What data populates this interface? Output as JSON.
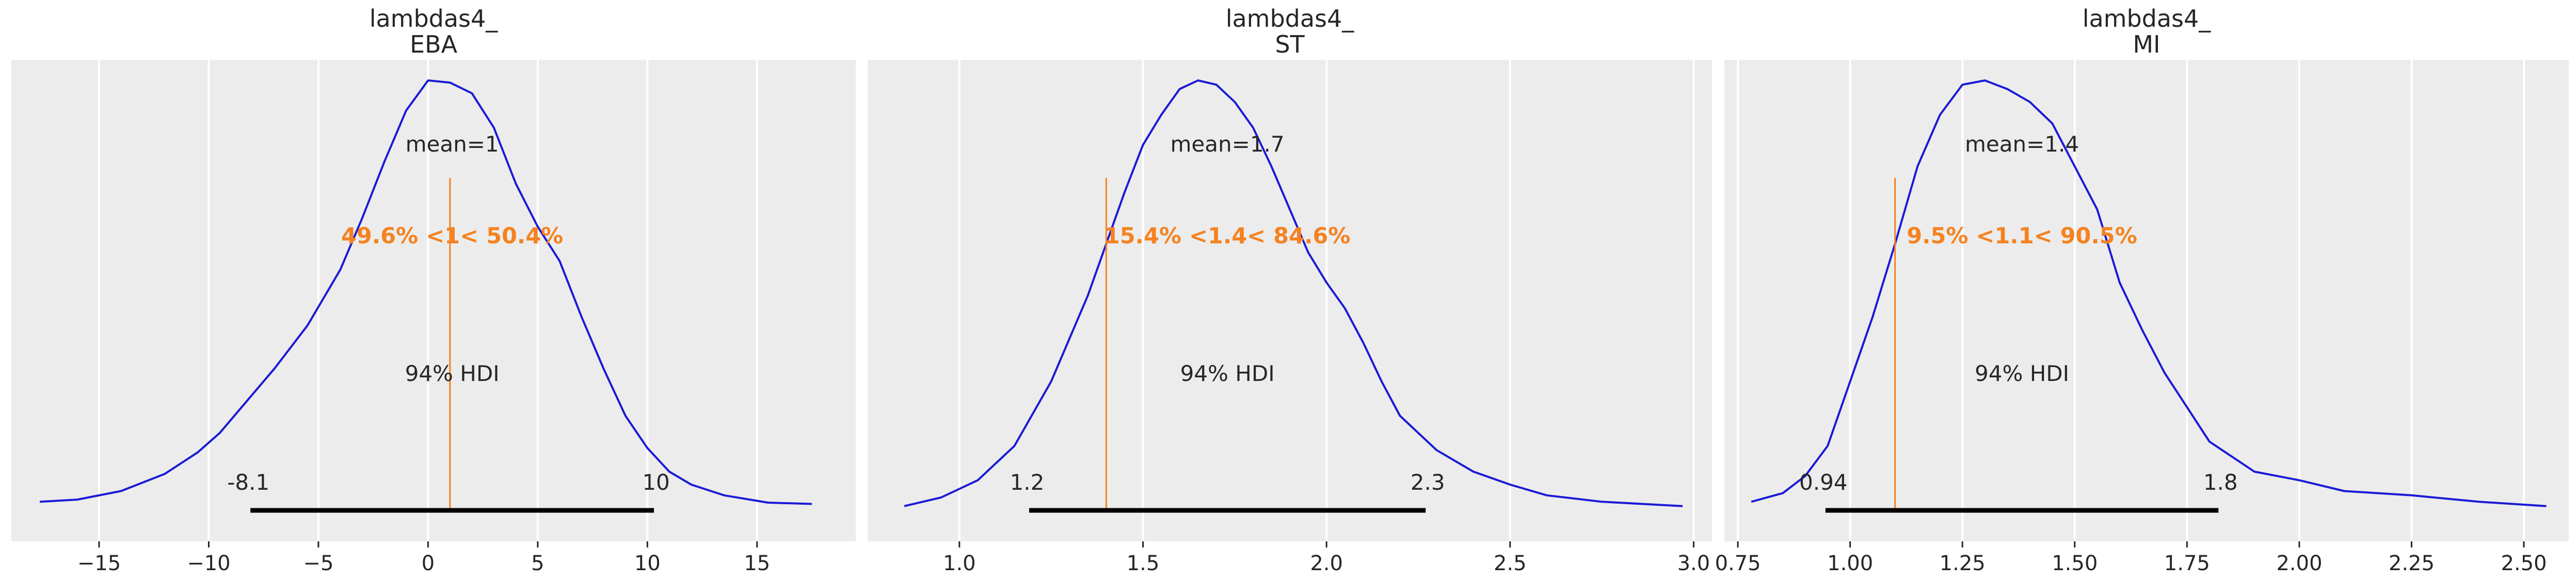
{
  "chart_data": [
    {
      "type": "area",
      "title": "lambdas4_\nEBA",
      "title_lines": [
        "lambdas4_",
        "EBA"
      ],
      "xlim": [
        -19,
        19.5
      ],
      "xticks": [
        -15,
        -10,
        -5,
        0,
        5,
        10,
        15
      ],
      "xtick_labels": [
        "−15",
        "−10",
        "−5",
        "0",
        "5",
        "10",
        "15"
      ],
      "density_x": [
        -17.7,
        -16,
        -14,
        -12,
        -10.5,
        -9.5,
        -8.5,
        -7,
        -5.5,
        -4,
        -3,
        -2,
        -1,
        0,
        1,
        2,
        3,
        4,
        5,
        6,
        7,
        8,
        9,
        10,
        11,
        12,
        13.5,
        15.5,
        17.5
      ],
      "density_y": [
        0.02,
        0.025,
        0.045,
        0.085,
        0.135,
        0.18,
        0.24,
        0.33,
        0.43,
        0.56,
        0.68,
        0.81,
        0.93,
        1.0,
        0.995,
        0.97,
        0.89,
        0.76,
        0.66,
        0.58,
        0.45,
        0.33,
        0.22,
        0.145,
        0.09,
        0.06,
        0.035,
        0.018,
        0.015
      ],
      "mean_label": "mean=1",
      "ref_value": 1,
      "ref_label": "49.6% <1< 50.4%",
      "hdi_label": "94% HDI",
      "hdi": [
        -8.1,
        10.3
      ],
      "hdi_labels": [
        "-8.1",
        "10"
      ],
      "grid": true
    },
    {
      "type": "area",
      "title": "lambdas4_\nST",
      "title_lines": [
        "lambdas4_",
        "ST"
      ],
      "xlim": [
        0.75,
        3.05
      ],
      "xticks": [
        1.0,
        1.5,
        2.0,
        2.5,
        3.0
      ],
      "xtick_labels": [
        "1.0",
        "1.5",
        "2.0",
        "2.5",
        "3.0"
      ],
      "density_x": [
        0.85,
        0.95,
        1.05,
        1.15,
        1.25,
        1.35,
        1.45,
        1.5,
        1.55,
        1.6,
        1.65,
        1.7,
        1.75,
        1.8,
        1.85,
        1.9,
        1.95,
        2.0,
        2.05,
        2.1,
        2.15,
        2.2,
        2.3,
        2.4,
        2.5,
        2.6,
        2.75,
        2.97
      ],
      "density_y": [
        0.01,
        0.03,
        0.07,
        0.15,
        0.3,
        0.5,
        0.74,
        0.85,
        0.92,
        0.98,
        1.0,
        0.99,
        0.95,
        0.89,
        0.8,
        0.7,
        0.6,
        0.53,
        0.47,
        0.39,
        0.3,
        0.22,
        0.14,
        0.09,
        0.06,
        0.035,
        0.02,
        0.01
      ],
      "mean_label": "mean=1.7",
      "ref_value": 1.4,
      "ref_label": "15.4% <1.4< 84.6%",
      "hdi_label": "94% HDI",
      "hdi": [
        1.19,
        2.27
      ],
      "hdi_labels": [
        "1.2",
        "2.3"
      ],
      "grid": true
    },
    {
      "type": "area",
      "title": "lambdas4_\nMI",
      "title_lines": [
        "lambdas4_",
        "MI"
      ],
      "xlim": [
        0.72,
        2.6
      ],
      "xticks": [
        0.75,
        1.0,
        1.25,
        1.5,
        1.75,
        2.0,
        2.25,
        2.5
      ],
      "xtick_labels": [
        "0.75",
        "1.00",
        "1.25",
        "1.50",
        "1.75",
        "2.00",
        "2.25",
        "2.50"
      ],
      "density_x": [
        0.78,
        0.85,
        0.9,
        0.95,
        1.0,
        1.05,
        1.1,
        1.15,
        1.2,
        1.25,
        1.3,
        1.35,
        1.4,
        1.45,
        1.5,
        1.55,
        1.6,
        1.65,
        1.7,
        1.75,
        1.8,
        1.9,
        2.0,
        2.1,
        2.25,
        2.4,
        2.55
      ],
      "density_y": [
        0.02,
        0.04,
        0.08,
        0.15,
        0.3,
        0.45,
        0.62,
        0.8,
        0.92,
        0.99,
        1.0,
        0.98,
        0.95,
        0.9,
        0.8,
        0.7,
        0.53,
        0.42,
        0.32,
        0.24,
        0.16,
        0.09,
        0.07,
        0.045,
        0.035,
        0.02,
        0.01
      ],
      "mean_label": "mean=1.4",
      "ref_value": 1.1,
      "ref_label": "9.5% <1.1< 90.5%",
      "hdi_label": "94% HDI",
      "hdi": [
        0.945,
        1.82
      ],
      "hdi_labels": [
        "0.94",
        "1.8"
      ],
      "grid": true
    }
  ],
  "colors": {
    "panel_bg": "#ececec",
    "grid": "#ffffff",
    "density": "#1a1ad6",
    "reference": "#f58220",
    "hdi": "#000000",
    "text": "#262626"
  }
}
